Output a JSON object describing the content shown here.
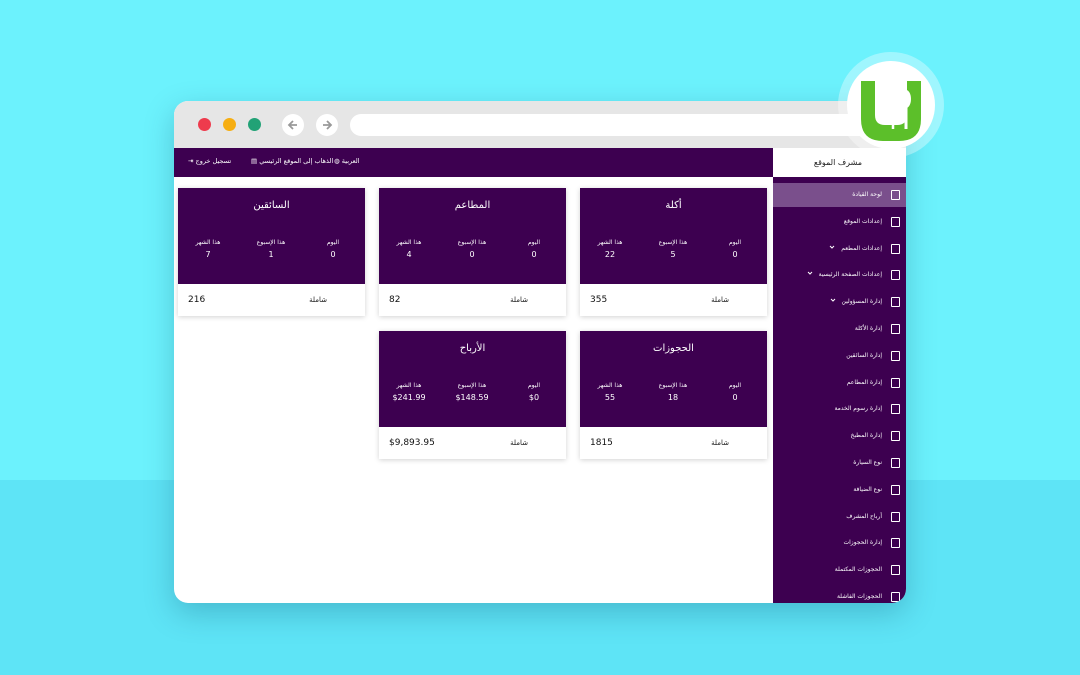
{
  "topbar": {
    "logout": "تسجيل خروج",
    "main_site": "الذهاب إلى الموقع الرئيسي",
    "language": "العربية"
  },
  "sidebar": {
    "header": "مشرف الموقع",
    "items": [
      {
        "label": "لوحة القيادة",
        "active": true
      },
      {
        "label": "إعدادات الموقع"
      },
      {
        "label": "إعدادات المطعم",
        "submenu": true
      },
      {
        "label": "إعدادات الصفحة الرئيسية",
        "submenu": true
      },
      {
        "label": "إدارة المسؤولين",
        "submenu": true
      },
      {
        "label": "إدارة الأكلة"
      },
      {
        "label": "إدارة السائقين"
      },
      {
        "label": "إدارة المطاعم"
      },
      {
        "label": "إدارة رسوم الخدمة"
      },
      {
        "label": "إدارة المطبخ"
      },
      {
        "label": "نوع السيارة"
      },
      {
        "label": "نوع الضيافة"
      },
      {
        "label": "أرباح المشرف"
      },
      {
        "label": "إدارة الحجوزات"
      },
      {
        "label": "الحجوزات المكتملة"
      },
      {
        "label": "الحجوزات الفاشلة"
      }
    ]
  },
  "cards": [
    {
      "title": "أكلة",
      "stats": [
        {
          "label": "اليوم",
          "value": 0
        },
        {
          "label": "هذا الإسبوع",
          "value": 5
        },
        {
          "label": "هذا الشهر",
          "value": 22
        }
      ],
      "total_label": "شاملة",
      "total": 355
    },
    {
      "title": "المطاعم",
      "stats": [
        {
          "label": "اليوم",
          "value": 0
        },
        {
          "label": "هذا الإسبوع",
          "value": 0
        },
        {
          "label": "هذا الشهر",
          "value": 4
        }
      ],
      "total_label": "شاملة",
      "total": 82
    },
    {
      "title": "السائقين",
      "stats": [
        {
          "label": "اليوم",
          "value": 0
        },
        {
          "label": "هذا الإسبوع",
          "value": 1
        },
        {
          "label": "هذا الشهر",
          "value": 7
        }
      ],
      "total_label": "شاملة",
      "total": 216
    },
    {
      "title": "الحجوزات",
      "stats": [
        {
          "label": "اليوم",
          "value": 0
        },
        {
          "label": "هذا الإسبوع",
          "value": 18
        },
        {
          "label": "هذا الشهر",
          "value": 55
        }
      ],
      "total_label": "شاملة",
      "total": 1815
    },
    {
      "title": "الأرباح",
      "stats": [
        {
          "label": "اليوم",
          "value": "$0"
        },
        {
          "label": "هذا الإسبوع",
          "value": "$148.59"
        },
        {
          "label": "هذا الشهر",
          "value": "$241.99"
        }
      ],
      "total_label": "شاملة",
      "total": "$9,893.95"
    }
  ]
}
